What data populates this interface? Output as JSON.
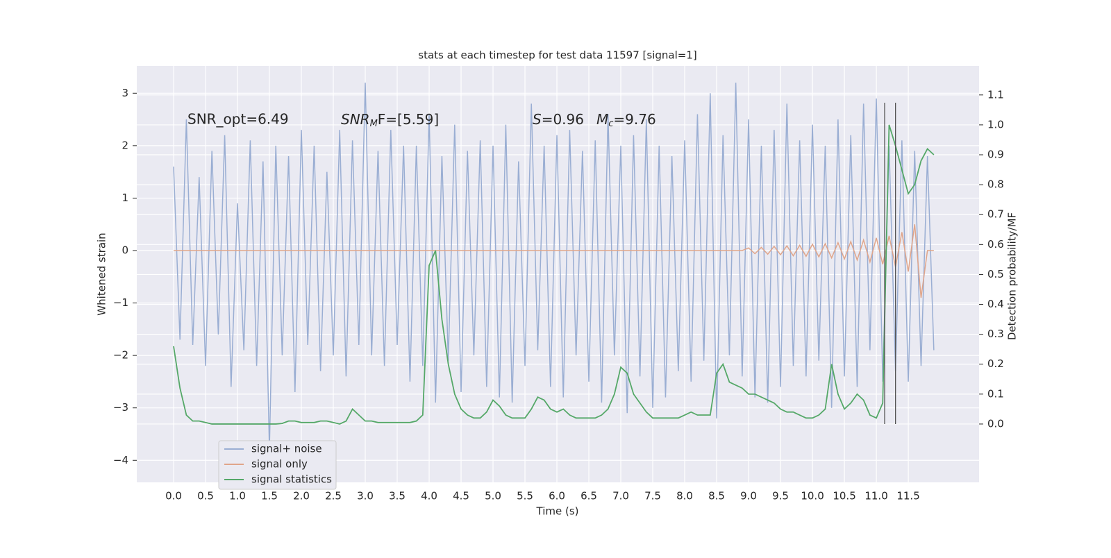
{
  "chart_data": {
    "type": "line",
    "title": "stats at each timestep for test data 11597 [signal=1]",
    "xlabel": "Time (s)",
    "ylabel": "Whitened strain",
    "y2label": "Detection probability/MF",
    "annotations": [
      {
        "text": "SNR_opt=6.49"
      },
      {
        "base": "SNR",
        "sub": "M",
        "tail": "F=[5.59]"
      },
      {
        "base": "S",
        "tail": "=0.96"
      },
      {
        "base": "M",
        "sub": "c",
        "tail": "=9.76"
      }
    ],
    "x": [
      0,
      0.1,
      0.2,
      0.3,
      0.4,
      0.5,
      0.6,
      0.7,
      0.8,
      0.9,
      1,
      1.1,
      1.2,
      1.3,
      1.4,
      1.5,
      1.6,
      1.7,
      1.8,
      1.9,
      2,
      2.1,
      2.2,
      2.3,
      2.4,
      2.5,
      2.6,
      2.7,
      2.8,
      2.9,
      3,
      3.1,
      3.2,
      3.3,
      3.4,
      3.5,
      3.6,
      3.7,
      3.8,
      3.9,
      4,
      4.1,
      4.2,
      4.3,
      4.4,
      4.5,
      4.6,
      4.7,
      4.8,
      4.9,
      5,
      5.1,
      5.2,
      5.3,
      5.4,
      5.5,
      5.6,
      5.7,
      5.8,
      5.9,
      6,
      6.1,
      6.2,
      6.3,
      6.4,
      6.5,
      6.6,
      6.7,
      6.8,
      6.9,
      7,
      7.1,
      7.2,
      7.3,
      7.4,
      7.5,
      7.6,
      7.7,
      7.8,
      7.9,
      8,
      8.1,
      8.2,
      8.3,
      8.4,
      8.5,
      8.6,
      8.7,
      8.8,
      8.9,
      9,
      9.1,
      9.2,
      9.3,
      9.4,
      9.5,
      9.6,
      9.7,
      9.8,
      9.9,
      10,
      10.1,
      10.2,
      10.3,
      10.4,
      10.5,
      10.6,
      10.7,
      10.8,
      10.9,
      11,
      11.1,
      11.2,
      11.3,
      11.4,
      11.5,
      11.6,
      11.7,
      11.8,
      11.9
    ],
    "series": [
      {
        "name": "signal+ noise",
        "color": "#9aaed3",
        "values": [
          1.6,
          -1.7,
          2.5,
          -1.8,
          1.4,
          -2.2,
          1.9,
          -1.6,
          2.2,
          -2.6,
          0.9,
          -1.9,
          2.1,
          -2.2,
          1.7,
          -3.8,
          2.0,
          -2.0,
          1.8,
          -2.7,
          2.3,
          -1.8,
          2.0,
          -2.3,
          1.5,
          -2.0,
          2.3,
          -2.4,
          2.1,
          -1.8,
          3.2,
          -2.0,
          1.9,
          -2.2,
          2.3,
          -1.8,
          2.0,
          -2.5,
          2.0,
          -2.2,
          2.6,
          -2.9,
          1.8,
          -2.1,
          2.4,
          -2.7,
          1.9,
          -2.0,
          2.1,
          -2.6,
          2.0,
          -2.8,
          2.4,
          -2.9,
          1.7,
          -2.2,
          2.8,
          -1.9,
          2.0,
          -2.6,
          2.2,
          -2.8,
          2.3,
          -2.0,
          1.9,
          -2.5,
          2.1,
          -2.9,
          2.6,
          -2.0,
          2.0,
          -3.1,
          2.2,
          -2.4,
          2.5,
          -3.0,
          2.0,
          -2.8,
          1.8,
          -2.3,
          2.1,
          -2.5,
          2.6,
          -2.1,
          3.0,
          -3.2,
          2.2,
          -2.0,
          3.2,
          -2.4,
          2.5,
          -2.8,
          2.0,
          -2.9,
          2.3,
          -2.6,
          2.8,
          -2.2,
          2.1,
          -2.4,
          2.4,
          -2.1,
          2.0,
          -3.0,
          2.5,
          -2.4,
          2.2,
          -2.6,
          2.8,
          -1.9,
          2.9,
          -2.5,
          2.0,
          -2.3,
          2.1,
          -2.5,
          1.9,
          -2.2,
          1.8,
          -1.9
        ]
      },
      {
        "name": "signal only",
        "color": "#e0a58a",
        "values": [
          0,
          0,
          0,
          0,
          0,
          0,
          0,
          0,
          0,
          0,
          0,
          0,
          0,
          0,
          0,
          0,
          0,
          0,
          0,
          0,
          0,
          0,
          0,
          0,
          0,
          0,
          0,
          0,
          0,
          0,
          0,
          0,
          0,
          0,
          0,
          0,
          0,
          0,
          0,
          0,
          0,
          0,
          0,
          0,
          0,
          0,
          0,
          0,
          0,
          0,
          0,
          0,
          0,
          0,
          0,
          0,
          0,
          0,
          0,
          0,
          0,
          0,
          0,
          0,
          0,
          0,
          0,
          0,
          0,
          0,
          0,
          0,
          0,
          0,
          0,
          0,
          0,
          0,
          0,
          0,
          0,
          0,
          0,
          0,
          0,
          0,
          0,
          0,
          0,
          0,
          0.05,
          -0.06,
          0.06,
          -0.07,
          0.08,
          -0.08,
          0.09,
          -0.1,
          0.1,
          -0.11,
          0.12,
          -0.12,
          0.13,
          -0.14,
          0.15,
          -0.16,
          0.17,
          -0.18,
          0.2,
          -0.22,
          0.24,
          -0.26,
          0.28,
          -0.31,
          0.35,
          -0.4,
          0.5,
          -0.9,
          0,
          0
        ]
      },
      {
        "name": "signal statistics",
        "color": "#55a868",
        "axis": "y2",
        "values": [
          0.26,
          0.12,
          0.03,
          0.01,
          0.01,
          0.005,
          0,
          0,
          0,
          0,
          0,
          0,
          0,
          0,
          0,
          0,
          0,
          0.002,
          0.01,
          0.01,
          0.005,
          0.005,
          0.005,
          0.01,
          0.01,
          0.005,
          0,
          0.01,
          0.05,
          0.03,
          0.01,
          0.01,
          0.005,
          0.005,
          0.005,
          0.005,
          0.005,
          0.005,
          0.01,
          0.03,
          0.53,
          0.58,
          0.35,
          0.2,
          0.1,
          0.05,
          0.03,
          0.02,
          0.02,
          0.04,
          0.08,
          0.06,
          0.03,
          0.02,
          0.02,
          0.02,
          0.05,
          0.09,
          0.08,
          0.05,
          0.04,
          0.05,
          0.03,
          0.02,
          0.02,
          0.02,
          0.02,
          0.03,
          0.05,
          0.1,
          0.19,
          0.17,
          0.1,
          0.07,
          0.04,
          0.02,
          0.02,
          0.02,
          0.02,
          0.02,
          0.03,
          0.04,
          0.03,
          0.03,
          0.03,
          0.17,
          0.2,
          0.14,
          0.13,
          0.12,
          0.1,
          0.1,
          0.09,
          0.08,
          0.07,
          0.05,
          0.04,
          0.04,
          0.03,
          0.02,
          0.02,
          0.03,
          0.05,
          0.2,
          0.1,
          0.05,
          0.07,
          0.1,
          0.08,
          0.03,
          0.02,
          0.07,
          1.0,
          0.93,
          0.85,
          0.77,
          0.8,
          0.88,
          0.92,
          0.9
        ]
      }
    ],
    "vlines": [
      11.13,
      11.3
    ],
    "xlim": [
      -0.576,
      12.608
    ],
    "ylim": [
      -4.42,
      3.52
    ],
    "y2lim": [
      -0.195,
      1.197
    ],
    "xticks": [
      {
        "value": 0,
        "label": "0.0"
      },
      0.5,
      {
        "value": 1,
        "label": "1.0"
      },
      1.5,
      {
        "value": 2,
        "label": "2.0"
      },
      2.5,
      {
        "value": 3,
        "label": "3.0"
      },
      3.5,
      {
        "value": 4,
        "label": "4.0"
      },
      4.5,
      {
        "value": 5,
        "label": "5.0"
      },
      5.5,
      {
        "value": 6,
        "label": "6.0"
      },
      6.5,
      {
        "value": 7,
        "label": "7.0"
      },
      7.5,
      {
        "value": 8,
        "label": "8.0"
      },
      8.5,
      {
        "value": 9,
        "label": "9.0"
      },
      9.5,
      {
        "value": 10,
        "label": "10.0"
      },
      10.5,
      {
        "value": 11,
        "label": "11.0"
      },
      11.5
    ],
    "yticks": [
      {
        "value": -4,
        "label": "−4"
      },
      {
        "value": -3,
        "label": "−3"
      },
      {
        "value": -2,
        "label": "−2"
      },
      {
        "value": -1,
        "label": "−1"
      },
      0,
      1,
      2,
      3
    ],
    "y2ticks": [
      {
        "value": 0,
        "label": "0.0"
      },
      0.1,
      0.2,
      0.3,
      0.4,
      0.5,
      0.6,
      0.7,
      0.8,
      0.9,
      {
        "value": 1,
        "label": "1.0"
      },
      1.1
    ],
    "grid": true,
    "legend": "lower left"
  }
}
